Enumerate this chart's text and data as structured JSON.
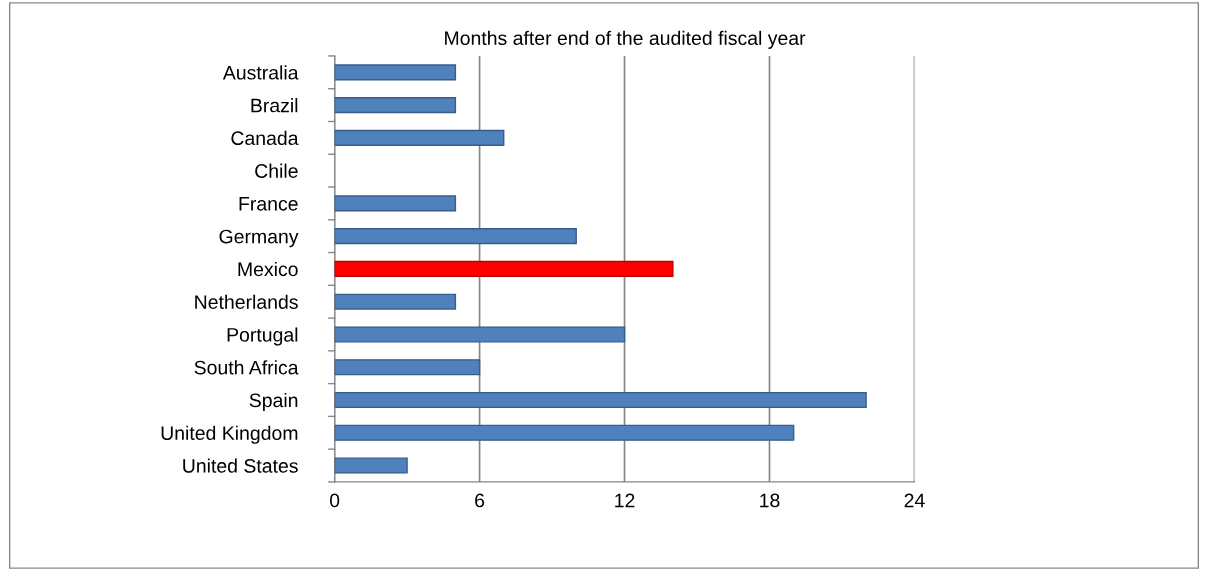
{
  "chart_data": {
    "type": "bar",
    "orientation": "horizontal",
    "title": "Months after end of the audited fiscal year",
    "categories": [
      "Australia",
      "Brazil",
      "Canada",
      "Chile",
      "France",
      "Germany",
      "Mexico",
      "Netherlands",
      "Portugal",
      "South Africa",
      "Spain",
      "United Kingdom",
      "United States"
    ],
    "values": [
      5,
      5,
      7,
      null,
      5,
      10,
      14,
      5,
      12,
      6,
      22,
      19,
      3
    ],
    "colors": [
      "#4f81bd",
      "#4f81bd",
      "#4f81bd",
      "#4f81bd",
      "#4f81bd",
      "#4f81bd",
      "#ff0000",
      "#4f81bd",
      "#4f81bd",
      "#4f81bd",
      "#4f81bd",
      "#4f81bd",
      "#4f81bd"
    ],
    "xlim": [
      0,
      24
    ],
    "xticks": [
      0,
      6,
      12,
      18,
      24
    ],
    "grid": "x"
  }
}
